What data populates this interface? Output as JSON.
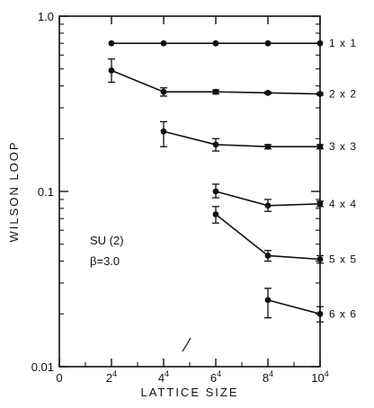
{
  "chart_data": {
    "type": "line",
    "title": "",
    "xlabel": "LATTICE SIZE",
    "ylabel": "WILSON LOOP",
    "y_scale": "log",
    "ylim": [
      0.01,
      1.0
    ],
    "xlim": [
      0,
      10
    ],
    "grid": false,
    "legend": "none",
    "x_ticks": [
      {
        "value": 0,
        "label": "0",
        "sup": ""
      },
      {
        "value": 2,
        "label": "2",
        "sup": "4"
      },
      {
        "value": 4,
        "label": "4",
        "sup": "4"
      },
      {
        "value": 6,
        "label": "6",
        "sup": "4"
      },
      {
        "value": 8,
        "label": "8",
        "sup": "4"
      },
      {
        "value": 10,
        "label": "10",
        "sup": "4"
      }
    ],
    "y_ticks": [
      {
        "value": 1.0,
        "label": "1.0"
      },
      {
        "value": 0.1,
        "label": "0.1"
      },
      {
        "value": 0.01,
        "label": "0.01"
      }
    ],
    "annotations": [
      "SU (2)",
      "β=3.0"
    ],
    "series": [
      {
        "name": "1 x 1",
        "points": [
          {
            "x": 2,
            "y": 0.7,
            "err": [
              0.7,
              0.7
            ]
          },
          {
            "x": 4,
            "y": 0.7,
            "err": [
              0.7,
              0.7
            ]
          },
          {
            "x": 6,
            "y": 0.7,
            "err": [
              0.7,
              0.7
            ]
          },
          {
            "x": 8,
            "y": 0.7,
            "err": [
              0.7,
              0.7
            ]
          },
          {
            "x": 10,
            "y": 0.7,
            "err": [
              0.7,
              0.7
            ]
          }
        ]
      },
      {
        "name": "2 x 2",
        "points": [
          {
            "x": 2,
            "y": 0.49,
            "err": [
              0.42,
              0.57
            ]
          },
          {
            "x": 4,
            "y": 0.37,
            "err": [
              0.35,
              0.39
            ]
          },
          {
            "x": 6,
            "y": 0.37,
            "err": [
              0.36,
              0.38
            ]
          },
          {
            "x": 8,
            "y": 0.365,
            "err": [
              0.36,
              0.37
            ]
          },
          {
            "x": 10,
            "y": 0.36,
            "err": [
              0.355,
              0.365
            ]
          }
        ]
      },
      {
        "name": "3 x 3",
        "points": [
          {
            "x": 4,
            "y": 0.22,
            "err": [
              0.18,
              0.25
            ]
          },
          {
            "x": 6,
            "y": 0.185,
            "err": [
              0.17,
              0.2
            ]
          },
          {
            "x": 8,
            "y": 0.18,
            "err": [
              0.175,
              0.185
            ]
          },
          {
            "x": 10,
            "y": 0.18,
            "err": [
              0.175,
              0.185
            ]
          }
        ]
      },
      {
        "name": "4 x 4",
        "points": [
          {
            "x": 6,
            "y": 0.1,
            "err": [
              0.092,
              0.11
            ]
          },
          {
            "x": 8,
            "y": 0.083,
            "err": [
              0.077,
              0.09
            ]
          },
          {
            "x": 10,
            "y": 0.085,
            "err": [
              0.082,
              0.088
            ]
          }
        ]
      },
      {
        "name": "5 x 5",
        "points": [
          {
            "x": 6,
            "y": 0.074,
            "err": [
              0.066,
              0.082
            ]
          },
          {
            "x": 8,
            "y": 0.043,
            "err": [
              0.04,
              0.046
            ]
          },
          {
            "x": 10,
            "y": 0.041,
            "err": [
              0.039,
              0.043
            ]
          }
        ]
      },
      {
        "name": "6 x 6",
        "points": [
          {
            "x": 8,
            "y": 0.024,
            "err": [
              0.019,
              0.028
            ]
          },
          {
            "x": 10,
            "y": 0.02,
            "err": [
              0.018,
              0.022
            ]
          }
        ]
      }
    ]
  }
}
